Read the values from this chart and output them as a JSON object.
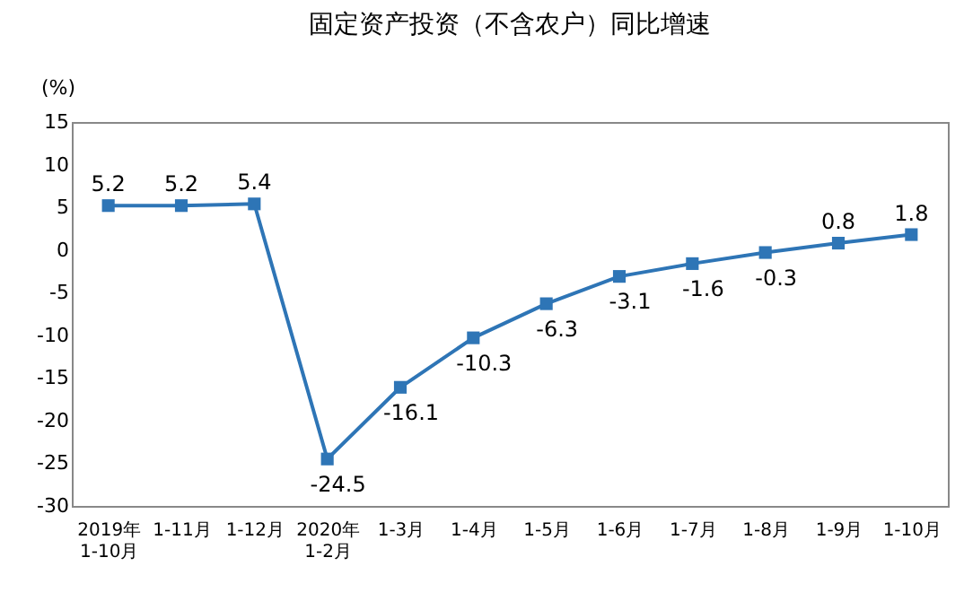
{
  "chart_data": {
    "type": "line",
    "title": "固定资产投资（不含农户）同比增速",
    "ylabel": "(%)",
    "categories": [
      "2019年\n1-10月",
      "1-11月",
      "1-12月",
      "2020年\n1-2月",
      "1-3月",
      "1-4月",
      "1-5月",
      "1-6月",
      "1-7月",
      "1-8月",
      "1-9月",
      "1-10月"
    ],
    "series": [
      {
        "color": "#2e75b6",
        "values": [
          5.2,
          5.2,
          5.4,
          -24.5,
          -16.1,
          -10.3,
          -6.3,
          -3.1,
          -1.6,
          -0.3,
          0.8,
          1.8
        ]
      }
    ],
    "ylim": [
      -30,
      15
    ],
    "yticks": [
      -30,
      -25,
      -20,
      -15,
      -10,
      -5,
      0,
      5,
      10,
      15
    ],
    "marker": "square",
    "line_style": "solid",
    "data_labels": true,
    "grid": false
  }
}
